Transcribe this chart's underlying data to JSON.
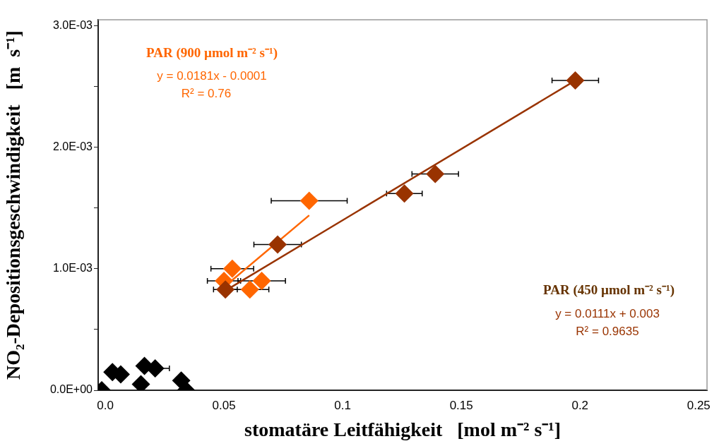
{
  "chart_data": {
    "type": "scatter",
    "xlabel": "stomatäre Leitfähigkeit   [mol m⁻² s⁻¹]",
    "ylabel": "NO₂-Depositionsgeschwindigkeit   [m  s⁻¹]",
    "xlim": [
      -0.003,
      0.2535
    ],
    "ylim": [
      0,
      0.00305
    ],
    "xticks": [
      {
        "value": 0,
        "label": "0.0"
      },
      0.05,
      0.1,
      0.15,
      0.2,
      0.25
    ],
    "yticks": [
      {
        "value": 0,
        "label": "0.0E+00"
      },
      {
        "value": 0.0005,
        "label": null
      },
      {
        "value": 0.001,
        "label": "1.0E-03"
      },
      {
        "value": 0.0015,
        "label": null
      },
      {
        "value": 0.002,
        "label": "2.0E-03"
      },
      {
        "value": 0.0025,
        "label": null
      },
      {
        "value": 0.003,
        "label": "3.0E-03"
      }
    ],
    "grid": false,
    "legend": false,
    "marker": "diamond",
    "series": [
      {
        "color": "#000000",
        "x": [
          -0.0015,
          0.003,
          0.0065,
          0.0165,
          0.015,
          0.021,
          0.032,
          0.034
        ],
        "values": [
          0,
          0.00015,
          0.00013,
          0.0002,
          5e-05,
          0.00018,
          8e-05,
          0
        ],
        "xerrors": [
          null,
          null,
          null,
          null,
          null,
          0.006,
          null,
          null
        ]
      },
      {
        "color": "#993300",
        "x": [
          0.198,
          0.139,
          0.126,
          0.0726,
          0.0506
        ],
        "values": [
          0.00255,
          0.00178,
          0.00162,
          0.0012,
          0.00083
        ],
        "xerrors": [
          0.0098,
          0.0098,
          0.0075,
          0.01,
          0.005
        ]
      },
      {
        "color": "#ff6600",
        "x": [
          0.0859,
          0.0535,
          0.05,
          0.0659,
          0.0609
        ],
        "values": [
          0.00156,
          0.001,
          0.0009,
          0.0009,
          0.00083
        ],
        "xerrors": [
          0.016,
          0.009,
          0.007,
          0.01,
          0.008
        ]
      },
      {
        "type": "line",
        "color": "#993300",
        "x": [
          0.0506,
          0.198
        ],
        "values": [
          0.00082,
          0.00255
        ],
        "marker": "none"
      },
      {
        "type": "line",
        "color": "#ff6600",
        "x": [
          0.05,
          0.0859
        ],
        "values": [
          0.00085,
          0.00144
        ],
        "marker": "none"
      }
    ],
    "annotations": [
      "PAR (900 µmol m⁻² s⁻¹)",
      "y = 0.0181x - 0.0001",
      "R² = 0.76",
      "PAR (450 µmol m⁻² s⁻¹)",
      "y = 0.0111x + 0.003",
      "R² = 0.9635"
    ]
  }
}
